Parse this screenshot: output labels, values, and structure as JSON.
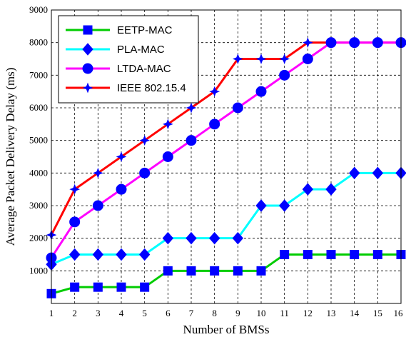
{
  "chart_data": {
    "type": "line",
    "title": "",
    "xlabel": "Number of BMSs",
    "ylabel": "Average Packet Delivery Delay (ms)",
    "xlim": [
      1,
      16
    ],
    "ylim": [
      0,
      9000
    ],
    "x": [
      1,
      2,
      3,
      4,
      5,
      6,
      7,
      8,
      9,
      10,
      11,
      12,
      13,
      14,
      15,
      16
    ],
    "xticks": [
      "1",
      "2",
      "3",
      "4",
      "5",
      "6",
      "7",
      "8",
      "9",
      "10",
      "11",
      "12",
      "13",
      "14",
      "15",
      "16"
    ],
    "yticks": [
      "1000",
      "2000",
      "3000",
      "4000",
      "5000",
      "6000",
      "7000",
      "8000",
      "9000"
    ],
    "grid": true,
    "legend_position": "top-left",
    "series": [
      {
        "name": "EETP-MAC",
        "color": "#00cc00",
        "marker_color": "#0000ff",
        "marker": "square",
        "values": [
          300,
          500,
          500,
          500,
          500,
          1000,
          1000,
          1000,
          1000,
          1000,
          1500,
          1500,
          1500,
          1500,
          1500,
          1500
        ]
      },
      {
        "name": "PLA-MAC",
        "color": "#00ffff",
        "marker_color": "#0000ff",
        "marker": "diamond",
        "values": [
          1200,
          1500,
          1500,
          1500,
          1500,
          2000,
          2000,
          2000,
          2000,
          3000,
          3000,
          3500,
          3500,
          4000,
          4000,
          4000
        ]
      },
      {
        "name": "LTDA-MAC",
        "color": "#ff00ff",
        "marker_color": "#0000ff",
        "marker": "circle",
        "values": [
          1400,
          2500,
          3000,
          3500,
          4000,
          4500,
          5000,
          5500,
          6000,
          6500,
          7000,
          7500,
          8000,
          8000,
          8000,
          8000
        ]
      },
      {
        "name": "IEEE 802.15.4",
        "color": "#ff0000",
        "marker_color": "#0000ff",
        "marker": "star",
        "values": [
          2100,
          3500,
          4000,
          4500,
          5000,
          5500,
          6000,
          6500,
          7500,
          7500,
          7500,
          8000,
          8000,
          8000,
          8000,
          8000
        ]
      }
    ]
  }
}
